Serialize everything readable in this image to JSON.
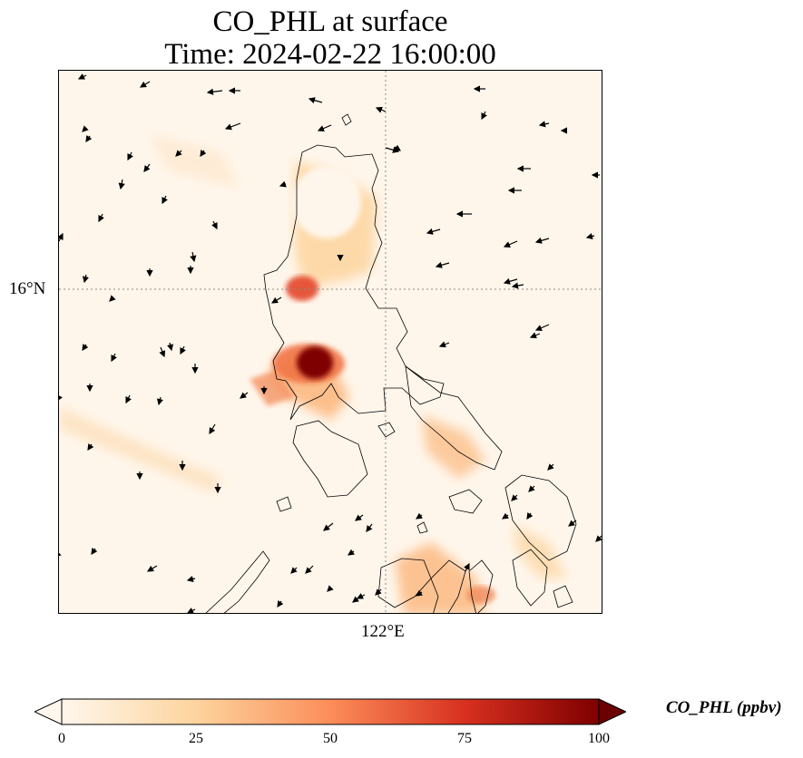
{
  "title": {
    "line1": "CO_PHL at surface",
    "line2": "Time: 2024-02-22 16:00:00"
  },
  "map": {
    "field": "CO_PHL",
    "colormap": "OrRd",
    "gridlines": {
      "lat_label": "16°N",
      "lon_label": "122°E",
      "style": "dotted gray"
    },
    "features": [
      "coastlines",
      "wind-vectors",
      "co-concentration-field"
    ],
    "concentration_range_ppbv": [
      0,
      100
    ],
    "peak_location": "Manila Bay area (dark red, ~100 ppbv)"
  },
  "colorbar": {
    "units_label": "CO_PHL (ppbv)",
    "ticks": [
      "0",
      "25",
      "50",
      "75",
      "100"
    ],
    "tick_values": [
      0,
      25,
      50,
      75,
      100
    ],
    "extend": "both",
    "colors": [
      "#fff7ec",
      "#fdd49e",
      "#fc8d59",
      "#d7301f",
      "#7f0000"
    ]
  }
}
